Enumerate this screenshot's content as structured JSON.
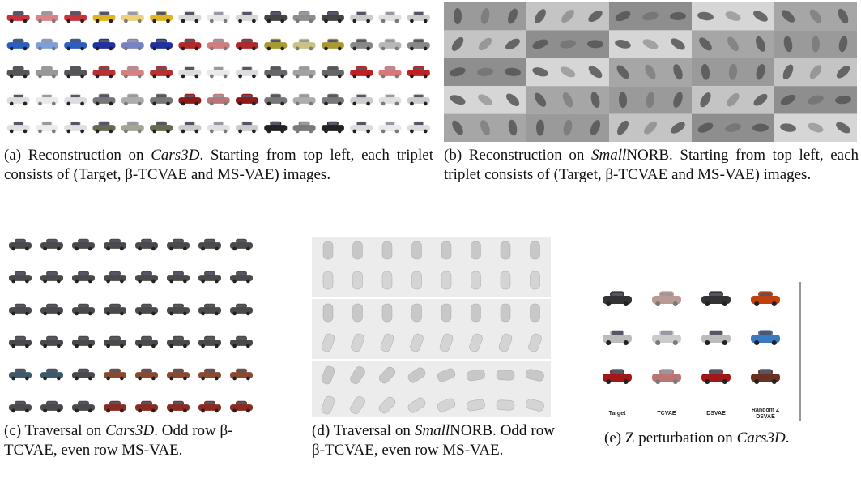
{
  "panels": [
    {
      "caption": [
        "(a) Reconstruction on ",
        "Cars3D",
        ". Starting from top left, each triplet consists of (Target, β-TCVAE and MS-VAE) images."
      ]
    },
    {
      "caption": [
        "(b)  Reconstruction on ",
        "Small",
        "NORB. Starting from top left, each triplet consists of (Target, β-TCVAE and MS-VAE) images."
      ]
    },
    {
      "caption": [
        "(c) Traversal on ",
        "Cars3D",
        ". Odd row β-TCVAE, even row MS-VAE."
      ]
    },
    {
      "caption": [
        "(d) Traversal on ",
        "Small",
        "NORB. Odd row β-TCVAE, even row MS-VAE."
      ]
    },
    {
      "caption": [
        "(e) Z perturbation on ",
        "Cars3D",
        "."
      ],
      "column_labels": [
        [
          "Target"
        ],
        [
          "TCVAE"
        ],
        [
          "DSVAE"
        ],
        [
          "Random Z",
          "DSVAE"
        ]
      ]
    }
  ]
}
